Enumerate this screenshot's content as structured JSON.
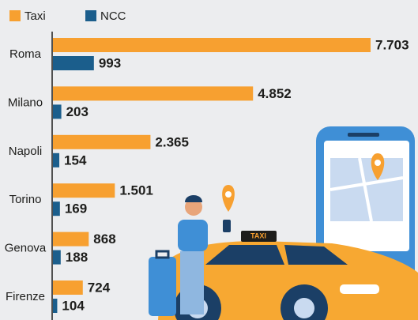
{
  "chart_data": {
    "type": "bar",
    "orientation": "horizontal",
    "categories": [
      "Roma",
      "Milano",
      "Napoli",
      "Torino",
      "Genova",
      "Firenze"
    ],
    "series": [
      {
        "name": "Taxi",
        "color": "#f7a030",
        "values": [
          7703,
          4852,
          2365,
          1501,
          868,
          724
        ],
        "value_labels": [
          "7.703",
          "4.852",
          "2.365",
          "1.501",
          "868",
          "724"
        ]
      },
      {
        "name": "NCC",
        "color": "#1b5e8c",
        "values": [
          993,
          203,
          154,
          169,
          188,
          104
        ],
        "value_labels": [
          "993",
          "203",
          "154",
          "169",
          "188",
          "104"
        ]
      }
    ]
  }
}
